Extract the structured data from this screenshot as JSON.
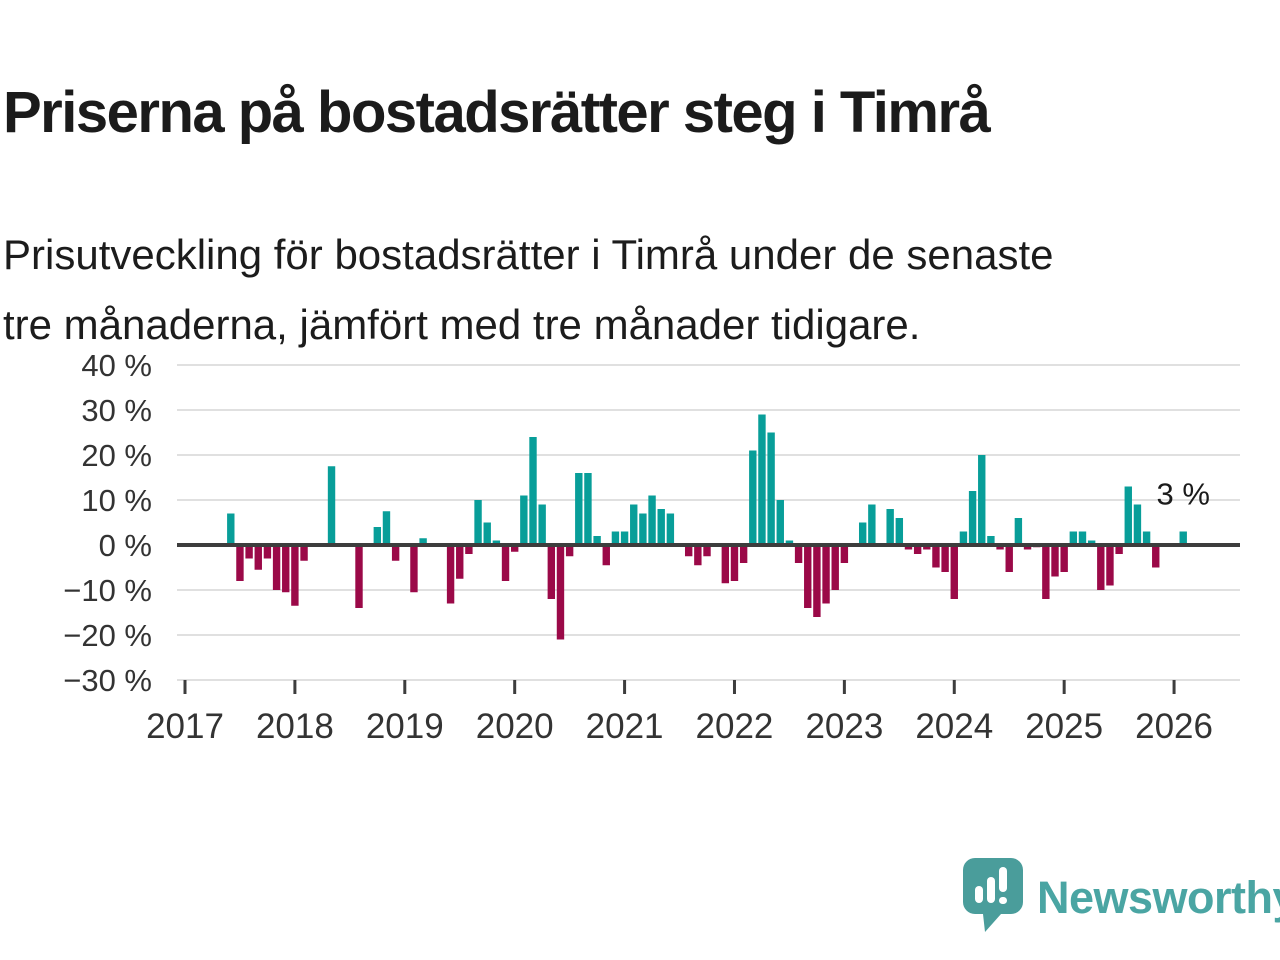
{
  "header": {
    "title": "Priserna på bostadsrätter steg i Timrå",
    "subtitle": "Prisutveckling för bostadsrätter i Timrå under de senaste\ntre månaderna, jämfört med tre månader tidigare."
  },
  "logo": {
    "brand_name": "Newsworthy",
    "icon": "speech-bubble-bar-chart-icon",
    "bubble_color": "#4a9d9b",
    "text_color": "#4aa5a3"
  },
  "chart_data": {
    "type": "bar",
    "title": "",
    "xlabel": "",
    "ylabel": "",
    "unit": "%",
    "ylim": [
      -30,
      40
    ],
    "grid": true,
    "colors": {
      "positive": "#089e99",
      "negative": "#9b0948",
      "gridline": "#e0e0e0",
      "zero_line": "#3d3d3d",
      "tick_text": "#333333"
    },
    "yticks": [
      {
        "v": 40,
        "label": "40 %"
      },
      {
        "v": 30,
        "label": "30 %"
      },
      {
        "v": 20,
        "label": "20 %"
      },
      {
        "v": 10,
        "label": "10 %"
      },
      {
        "v": 0,
        "label": "0 %"
      },
      {
        "v": -10,
        "label": "−10 %"
      },
      {
        "v": -20,
        "label": "−20 %"
      },
      {
        "v": -30,
        "label": "−30 %"
      }
    ],
    "x_tick_labels": [
      "2017",
      "2018",
      "2019",
      "2020",
      "2021",
      "2022",
      "2023",
      "2024",
      "2025",
      "2026"
    ],
    "annotation": {
      "text": "3 %",
      "date": "2026-02",
      "value": 3
    },
    "points": [
      {
        "date": "2017-06",
        "value": 7
      },
      {
        "date": "2017-07",
        "value": -8
      },
      {
        "date": "2017-08",
        "value": -3
      },
      {
        "date": "2017-09",
        "value": -5.5
      },
      {
        "date": "2017-10",
        "value": -3
      },
      {
        "date": "2017-11",
        "value": -10
      },
      {
        "date": "2017-12",
        "value": -10.5
      },
      {
        "date": "2018-01",
        "value": -13.5
      },
      {
        "date": "2018-02",
        "value": -3.5
      },
      {
        "date": "2018-05",
        "value": 17.5
      },
      {
        "date": "2018-08",
        "value": -14
      },
      {
        "date": "2018-10",
        "value": 4
      },
      {
        "date": "2018-11",
        "value": 7.5
      },
      {
        "date": "2018-12",
        "value": -3.5
      },
      {
        "date": "2019-02",
        "value": -10.5
      },
      {
        "date": "2019-03",
        "value": 1.5
      },
      {
        "date": "2019-06",
        "value": -13
      },
      {
        "date": "2019-07",
        "value": -7.5
      },
      {
        "date": "2019-08",
        "value": -2
      },
      {
        "date": "2019-09",
        "value": 10
      },
      {
        "date": "2019-10",
        "value": 5
      },
      {
        "date": "2019-11",
        "value": 1
      },
      {
        "date": "2019-12",
        "value": -8
      },
      {
        "date": "2020-01",
        "value": -1.5
      },
      {
        "date": "2020-02",
        "value": 11
      },
      {
        "date": "2020-03",
        "value": 24
      },
      {
        "date": "2020-04",
        "value": 9
      },
      {
        "date": "2020-05",
        "value": -12
      },
      {
        "date": "2020-06",
        "value": -21
      },
      {
        "date": "2020-07",
        "value": -2.5
      },
      {
        "date": "2020-08",
        "value": 16
      },
      {
        "date": "2020-09",
        "value": 16
      },
      {
        "date": "2020-10",
        "value": 2
      },
      {
        "date": "2020-11",
        "value": -4.5
      },
      {
        "date": "2020-12",
        "value": 3
      },
      {
        "date": "2021-01",
        "value": 3
      },
      {
        "date": "2021-02",
        "value": 9
      },
      {
        "date": "2021-03",
        "value": 7
      },
      {
        "date": "2021-04",
        "value": 11
      },
      {
        "date": "2021-05",
        "value": 8
      },
      {
        "date": "2021-06",
        "value": 7
      },
      {
        "date": "2021-08",
        "value": -2.5
      },
      {
        "date": "2021-09",
        "value": -4.5
      },
      {
        "date": "2021-10",
        "value": -2.5
      },
      {
        "date": "2021-12",
        "value": -8.5
      },
      {
        "date": "2022-01",
        "value": -8
      },
      {
        "date": "2022-02",
        "value": -4
      },
      {
        "date": "2022-03",
        "value": 21
      },
      {
        "date": "2022-04",
        "value": 29
      },
      {
        "date": "2022-05",
        "value": 25
      },
      {
        "date": "2022-06",
        "value": 10
      },
      {
        "date": "2022-07",
        "value": 1
      },
      {
        "date": "2022-08",
        "value": -4
      },
      {
        "date": "2022-09",
        "value": -14
      },
      {
        "date": "2022-10",
        "value": -16
      },
      {
        "date": "2022-11",
        "value": -13
      },
      {
        "date": "2022-12",
        "value": -10
      },
      {
        "date": "2023-01",
        "value": -4
      },
      {
        "date": "2023-03",
        "value": 5
      },
      {
        "date": "2023-04",
        "value": 9
      },
      {
        "date": "2023-06",
        "value": 8
      },
      {
        "date": "2023-07",
        "value": 6
      },
      {
        "date": "2023-08",
        "value": -1
      },
      {
        "date": "2023-09",
        "value": -2
      },
      {
        "date": "2023-10",
        "value": -1
      },
      {
        "date": "2023-11",
        "value": -5
      },
      {
        "date": "2023-12",
        "value": -6
      },
      {
        "date": "2024-01",
        "value": -12
      },
      {
        "date": "2024-02",
        "value": 3
      },
      {
        "date": "2024-03",
        "value": 12
      },
      {
        "date": "2024-04",
        "value": 20
      },
      {
        "date": "2024-05",
        "value": 2
      },
      {
        "date": "2024-06",
        "value": -1
      },
      {
        "date": "2024-07",
        "value": -6
      },
      {
        "date": "2024-08",
        "value": 6
      },
      {
        "date": "2024-09",
        "value": -1
      },
      {
        "date": "2024-10",
        "value": -0.5
      },
      {
        "date": "2024-11",
        "value": -12
      },
      {
        "date": "2024-12",
        "value": -7
      },
      {
        "date": "2025-01",
        "value": -6
      },
      {
        "date": "2025-02",
        "value": 3
      },
      {
        "date": "2025-03",
        "value": 3
      },
      {
        "date": "2025-04",
        "value": 1
      },
      {
        "date": "2025-05",
        "value": -10
      },
      {
        "date": "2025-06",
        "value": -9
      },
      {
        "date": "2025-07",
        "value": -2
      },
      {
        "date": "2025-08",
        "value": 13
      },
      {
        "date": "2025-09",
        "value": 9
      },
      {
        "date": "2025-10",
        "value": 3
      },
      {
        "date": "2025-11",
        "value": -5
      },
      {
        "date": "2026-02",
        "value": 3
      }
    ]
  }
}
